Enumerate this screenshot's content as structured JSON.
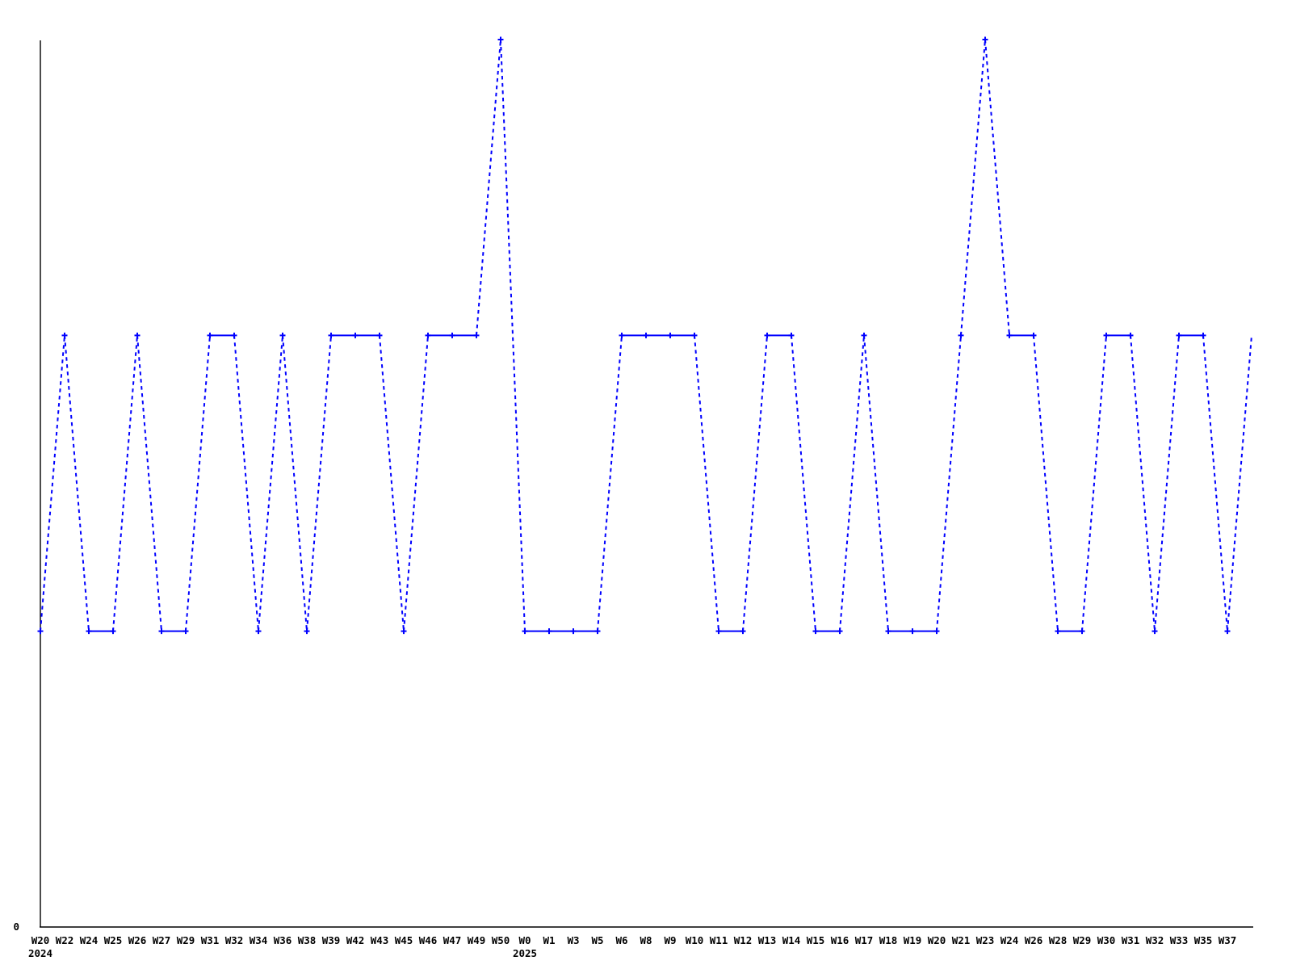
{
  "chart_data": {
    "type": "line",
    "title": "",
    "xlabel": "",
    "ylabel": "",
    "grid": false,
    "legend": false,
    "marker": "plus",
    "line_color": "#0000ff",
    "axis_color": "#000000",
    "background_color": "#ffffff",
    "y_axis": {
      "origin_label": "0",
      "min": 0,
      "max_implied": 3
    },
    "x_tick_labels": [
      "W20",
      "W22",
      "W24",
      "W25",
      "W26",
      "W27",
      "W29",
      "W31",
      "W32",
      "W34",
      "W36",
      "W38",
      "W39",
      "W42",
      "W43",
      "W45",
      "W46",
      "W47",
      "W49",
      "W50",
      "W0",
      "W1",
      "W3",
      "W5",
      "W6",
      "W8",
      "W9",
      "W10",
      "W11",
      "W12",
      "W13",
      "W14",
      "W15",
      "W16",
      "W17",
      "W18",
      "W19",
      "W20",
      "W21",
      "W23",
      "W24",
      "W26",
      "W28",
      "W29",
      "W30",
      "W31",
      "W32",
      "W33",
      "W35",
      "W37"
    ],
    "values": [
      1,
      2,
      1,
      1,
      2,
      1,
      1,
      2,
      2,
      1,
      2,
      1,
      2,
      2,
      2,
      1,
      2,
      2,
      2,
      3,
      1,
      1,
      1,
      1,
      2,
      2,
      2,
      2,
      1,
      1,
      2,
      2,
      1,
      1,
      2,
      1,
      1,
      1,
      2,
      3,
      2,
      2,
      1,
      1,
      2,
      2,
      1,
      2,
      2,
      1
    ],
    "trailing_unlabeled_value": 2,
    "year_labels": [
      {
        "index": 0,
        "label": "2024"
      },
      {
        "index": 20,
        "label": "2025"
      }
    ]
  }
}
